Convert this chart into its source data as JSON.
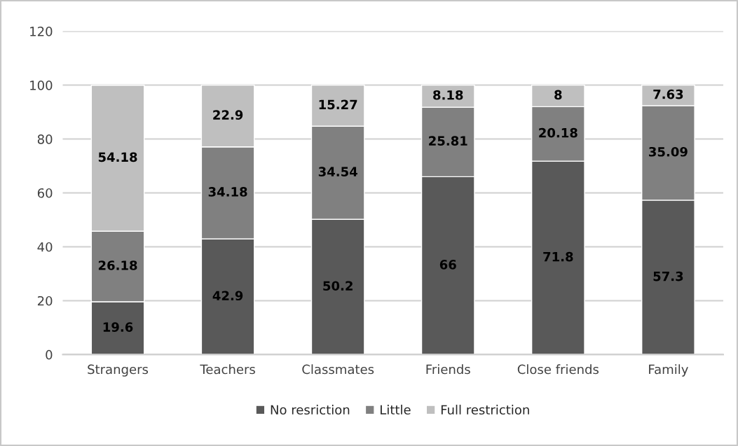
{
  "chart_data": {
    "type": "bar",
    "stacked": true,
    "categories": [
      "Strangers",
      "Teachers",
      "Classmates",
      "Friends",
      "Close friends",
      "Family"
    ],
    "series": [
      {
        "name": "No resriction",
        "color": "#595959",
        "values": [
          19.6,
          42.9,
          50.2,
          66,
          71.8,
          57.3
        ]
      },
      {
        "name": "Little",
        "color": "#808080",
        "values": [
          26.18,
          34.18,
          34.54,
          25.81,
          20.18,
          35.09
        ]
      },
      {
        "name": "Full restriction",
        "color": "#bfbfbf",
        "values": [
          54.18,
          22.9,
          15.27,
          8.18,
          8,
          7.63
        ]
      }
    ],
    "ylim": [
      0,
      120
    ],
    "yticks": [
      0,
      20,
      40,
      60,
      80,
      100,
      120
    ],
    "grid": "y",
    "legend": "bottom",
    "data_labels": true
  }
}
